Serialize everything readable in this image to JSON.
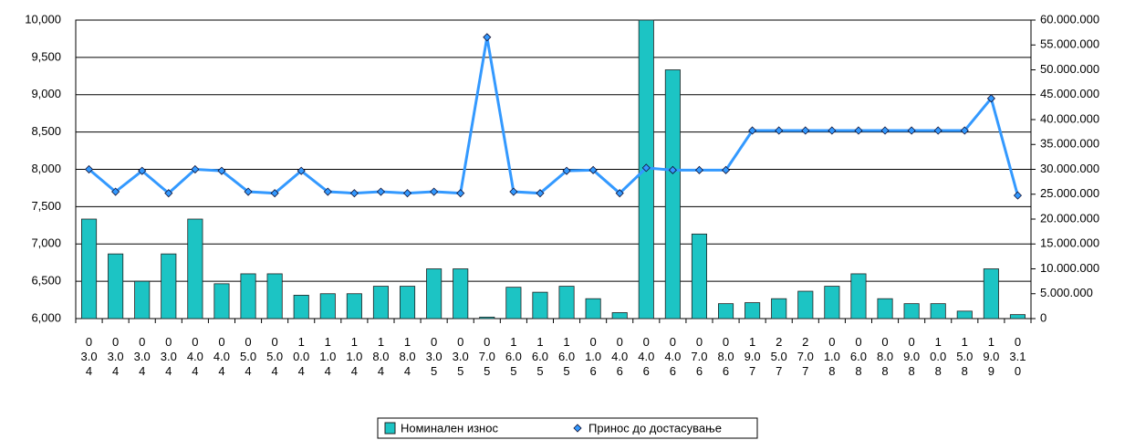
{
  "chart_data": {
    "type": "bar_line",
    "categories": [
      "03.04",
      "03.04",
      "03.04",
      "03.04",
      "04.04",
      "04.04",
      "05.04",
      "05.04",
      "10.04",
      "11.04",
      "11.04",
      "18.04",
      "18.04",
      "03.05",
      "03.05",
      "07.05",
      "16.05",
      "16.05",
      "16.05",
      "01.06",
      "04.06",
      "04.06",
      "04.06",
      "07.06",
      "08.06",
      "19.07",
      "25.07",
      "27.07",
      "01.08",
      "06.08",
      "08.08",
      "09.08",
      "10.08",
      "15.08",
      "19.09",
      "03.10"
    ],
    "series": [
      {
        "name": "Номинален  износ",
        "type": "bar",
        "axis": "y2",
        "color": "#1cc4c4",
        "values": [
          20000000,
          13000000,
          7500000,
          13000000,
          20000000,
          7000000,
          9000000,
          9000000,
          4700000,
          5000000,
          5000000,
          6500000,
          6500000,
          10000000,
          10000000,
          300000,
          6300000,
          5300000,
          6500000,
          4000000,
          1200000,
          60000000,
          50000000,
          17000000,
          3000000,
          3200000,
          4000000,
          5500000,
          6500000,
          9000000,
          4000000,
          3000000,
          3000000,
          1500000,
          10000000,
          800000
        ]
      },
      {
        "name": "Принос до достасување",
        "type": "line",
        "axis": "y",
        "color": "#3399ff",
        "values": [
          8000,
          7700,
          7980,
          7680,
          8000,
          7980,
          7700,
          7680,
          7980,
          7700,
          7680,
          7700,
          7680,
          7700,
          7680,
          9770,
          7700,
          7680,
          7980,
          7990,
          7680,
          8020,
          7990,
          7990,
          7990,
          8520,
          8520,
          8520,
          8520,
          8520,
          8520,
          8520,
          8520,
          8520,
          8950,
          7650
        ]
      }
    ],
    "ylim": [
      6000,
      10000
    ],
    "yticks": [
      {
        "value": 6000,
        "label": "6,000"
      },
      {
        "value": 6500,
        "label": "6,500"
      },
      {
        "value": 7000,
        "label": "7,000"
      },
      {
        "value": 7500,
        "label": "7,500"
      },
      {
        "value": 8000,
        "label": "8,000"
      },
      {
        "value": 8500,
        "label": "8,500"
      },
      {
        "value": 9000,
        "label": "9,000"
      },
      {
        "value": 9500,
        "label": "9,500"
      },
      {
        "value": 10000,
        "label": "10,000"
      }
    ],
    "y2lim": [
      0,
      60000000
    ],
    "y2ticks": [
      0,
      {
        "value": 5000000,
        "label": "5.000.000"
      },
      {
        "value": 10000000,
        "label": "10.000.000"
      },
      {
        "value": 15000000,
        "label": "15.000.000"
      },
      {
        "value": 20000000,
        "label": "20.000.000"
      },
      {
        "value": 25000000,
        "label": "25.000.000"
      },
      {
        "value": 30000000,
        "label": "30.000.000"
      },
      {
        "value": 35000000,
        "label": "35.000.000"
      },
      {
        "value": 40000000,
        "label": "40.000.000"
      },
      {
        "value": 45000000,
        "label": "45.000.000"
      },
      {
        "value": 50000000,
        "label": "50.000.000"
      },
      {
        "value": 55000000,
        "label": "55.000.000"
      },
      {
        "value": 60000000,
        "label": "60.000.000"
      }
    ],
    "grid": true,
    "legend": "bottom"
  }
}
